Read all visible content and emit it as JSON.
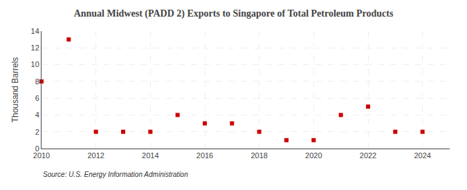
{
  "chart_data": {
    "type": "scatter",
    "title": "Annual Midwest (PADD 2) Exports to Singapore of Total Petroleum Products",
    "ylabel": "Thousand Barrels",
    "annotations": [
      "Source: U.S. Energy Information Administration"
    ],
    "x": [
      2010,
      2011,
      2012,
      2013,
      2014,
      2015,
      2016,
      2017,
      2018,
      2019,
      2020,
      2021,
      2022,
      2023,
      2024
    ],
    "values": [
      8,
      13,
      2,
      2,
      2,
      4,
      3,
      3,
      2,
      1,
      1,
      4,
      5,
      2,
      2
    ],
    "color": "#cc0000",
    "marker": "square",
    "xlim": [
      2010,
      2025
    ],
    "ylim": [
      0,
      14
    ],
    "xticks": [
      2010,
      2012,
      2014,
      2016,
      2018,
      2020,
      2022,
      2024
    ],
    "yticks": [
      0,
      2,
      4,
      6,
      8,
      10,
      12,
      14
    ],
    "grid": true
  }
}
